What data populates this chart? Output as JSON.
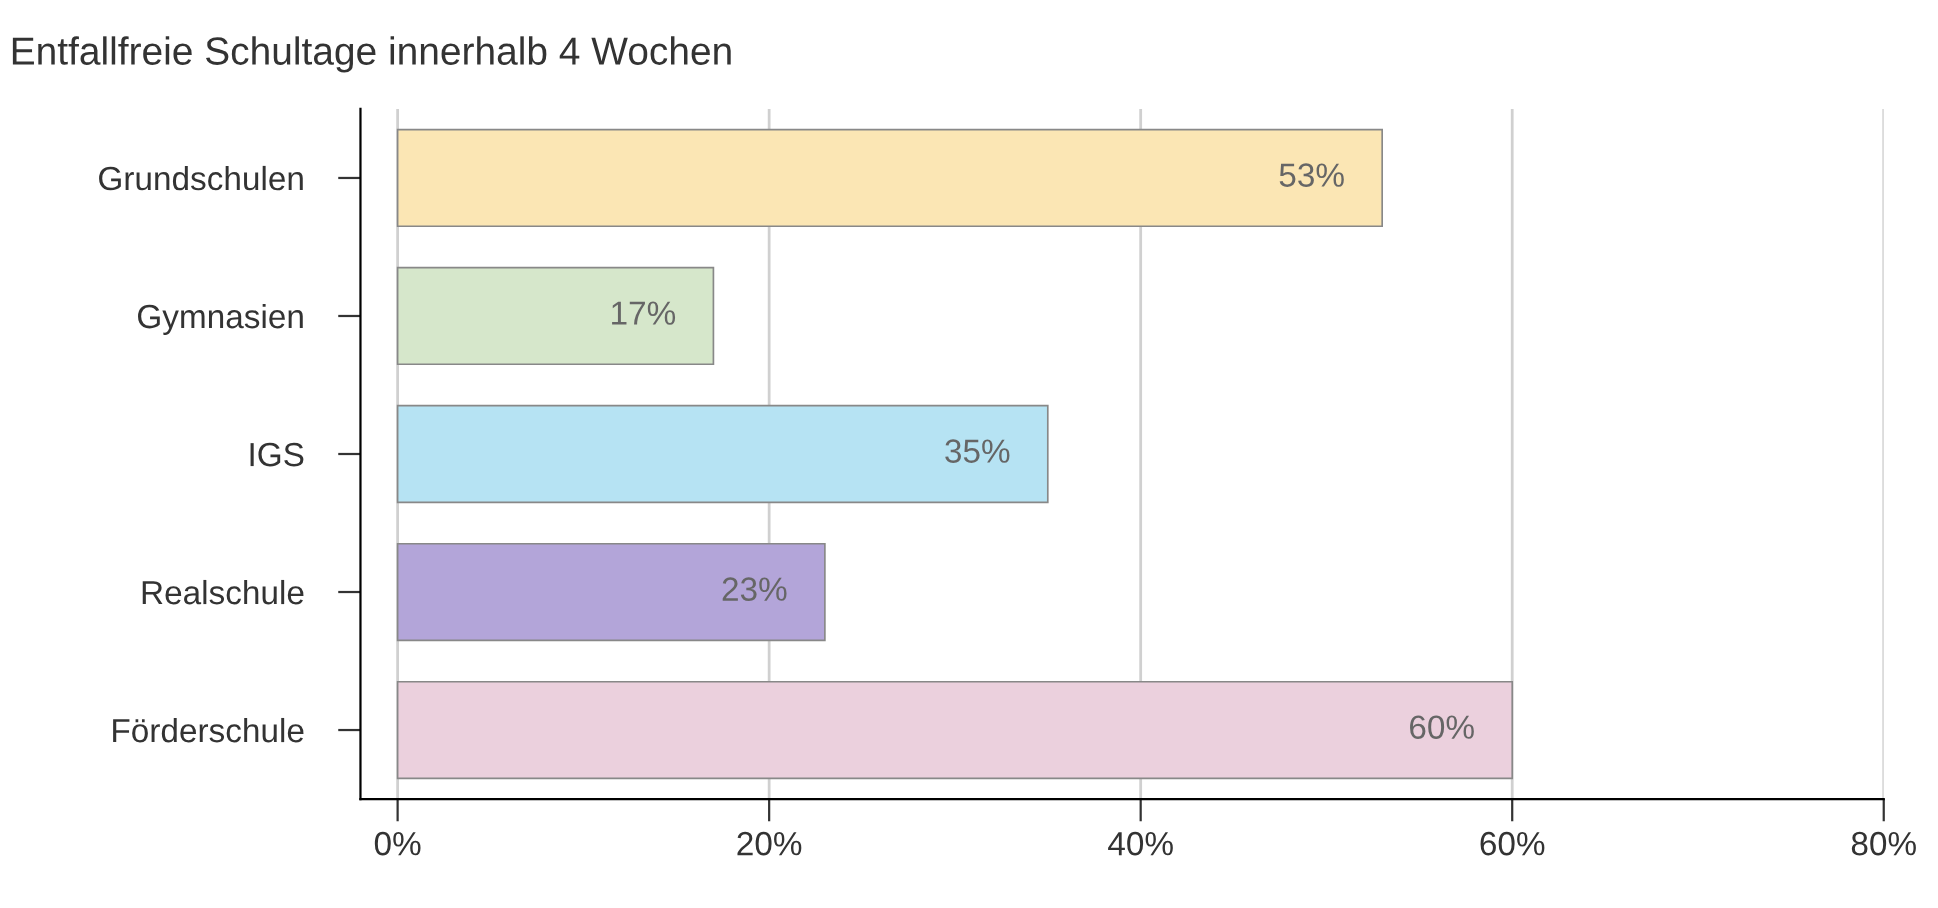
{
  "chart_data": {
    "type": "bar",
    "orientation": "horizontal",
    "title": "Entfallfreie Schultage innerhalb 4 Wochen",
    "categories": [
      "Grundschulen",
      "Gymnasien",
      "IGS",
      "Realschule",
      "Förderschule"
    ],
    "values": [
      53,
      17,
      35,
      23,
      60
    ],
    "colors": [
      "#fbe6b4",
      "#d6e7cb",
      "#b6e3f3",
      "#b3a5d9",
      "#ebd0dd"
    ],
    "value_labels": [
      "53%",
      "17%",
      "35%",
      "23%",
      "60%"
    ],
    "xlim": [
      -2,
      80
    ],
    "xticks": [
      {
        "value": 0,
        "label": "0%"
      },
      {
        "value": 20,
        "label": "20%"
      },
      {
        "value": 40,
        "label": "40%"
      },
      {
        "value": 60,
        "label": "60%"
      },
      {
        "value": 80,
        "label": "80%"
      }
    ],
    "grid": "x"
  }
}
